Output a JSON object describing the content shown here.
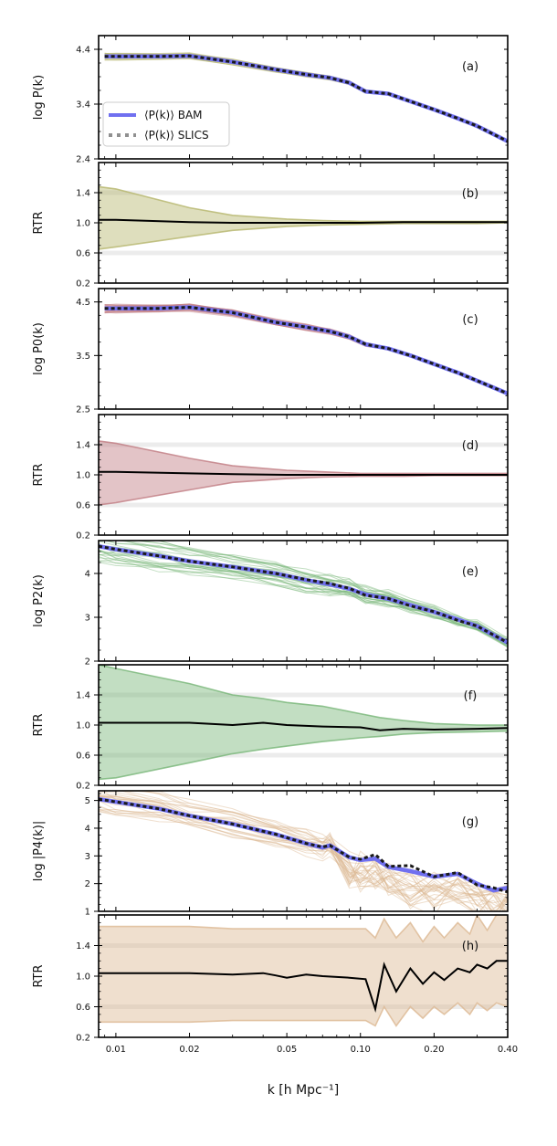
{
  "colors": {
    "bam": "#7070f0",
    "slics": "#1a1a1a",
    "legend_slics": "#909090",
    "olive": "#b5b56c",
    "rose": "#c07c82",
    "green": "#77b577",
    "tan": "#dcb892",
    "ratio": "#000000",
    "grid": "#ececec"
  },
  "x_axis": {
    "label": "k [h Mpc⁻¹]",
    "scale": "log",
    "lim": [
      0.0085,
      0.4
    ],
    "ticks": [
      0.01,
      0.02,
      0.05,
      0.1,
      0.2,
      0.4
    ],
    "tick_labels": [
      "0.01",
      "0.02",
      "0.05",
      "0.10",
      "0.20",
      "0.40"
    ]
  },
  "legend": {
    "placement": "lower-left of panel (a)",
    "entries": [
      "⟨P(k)⟩ BAM",
      "⟨P(k)⟩ SLICS"
    ]
  },
  "chart_data": [
    {
      "panel": "(a)",
      "type": "line",
      "ylabel": "log P(k)",
      "ylim": [
        2.4,
        4.65
      ],
      "yticks": [
        2.4,
        3.4,
        4.4
      ],
      "ytick_labels": [
        "2.4",
        "3.4",
        "4.4"
      ],
      "band_color": "olive",
      "x": [
        0.009,
        0.01,
        0.015,
        0.02,
        0.03,
        0.045,
        0.06,
        0.075,
        0.09,
        0.105,
        0.13,
        0.16,
        0.2,
        0.25,
        0.3,
        0.4
      ],
      "series": [
        {
          "name": "⟨P(k)⟩ BAM",
          "values": [
            4.27,
            4.27,
            4.27,
            4.28,
            4.17,
            4.03,
            3.94,
            3.88,
            3.79,
            3.63,
            3.59,
            3.45,
            3.3,
            3.14,
            3.0,
            2.72
          ]
        },
        {
          "name": "⟨P(k)⟩ SLICS",
          "values": [
            4.27,
            4.27,
            4.27,
            4.28,
            4.17,
            4.03,
            3.94,
            3.88,
            3.79,
            3.63,
            3.59,
            3.45,
            3.3,
            3.14,
            3.0,
            2.72
          ]
        }
      ]
    },
    {
      "panel": "(b)",
      "type": "area",
      "ylabel": "RTR",
      "ylim": [
        0.2,
        1.8
      ],
      "yticks": [
        0.2,
        0.6,
        1.0,
        1.4
      ],
      "ytick_labels": [
        "0.2",
        "0.6",
        "1.0",
        "1.4"
      ],
      "band_color": "olive",
      "x": [
        0.0085,
        0.01,
        0.02,
        0.03,
        0.05,
        0.07,
        0.1,
        0.15,
        0.2,
        0.3,
        0.4
      ],
      "ratio": [
        1.04,
        1.04,
        1.01,
        1.0,
        1.0,
        1.0,
        1.0,
        1.01,
        1.01,
        1.01,
        1.01
      ],
      "upper": [
        1.48,
        1.45,
        1.2,
        1.1,
        1.05,
        1.03,
        1.02,
        1.02,
        1.02,
        1.02,
        1.02
      ],
      "lower": [
        0.65,
        0.68,
        0.82,
        0.9,
        0.95,
        0.97,
        0.98,
        0.99,
        0.99,
        0.99,
        1.0
      ]
    },
    {
      "panel": "(c)",
      "type": "line",
      "ylabel": "log P0(k)",
      "ylim": [
        2.5,
        4.75
      ],
      "yticks": [
        2.5,
        3.5,
        4.5
      ],
      "ytick_labels": [
        "2.5",
        "3.5",
        "4.5"
      ],
      "band_color": "rose",
      "x": [
        0.009,
        0.01,
        0.015,
        0.02,
        0.03,
        0.045,
        0.06,
        0.075,
        0.09,
        0.105,
        0.13,
        0.16,
        0.2,
        0.25,
        0.3,
        0.4
      ],
      "series": [
        {
          "name": "⟨P(k)⟩ BAM",
          "values": [
            4.38,
            4.38,
            4.38,
            4.4,
            4.3,
            4.12,
            4.03,
            3.95,
            3.85,
            3.71,
            3.63,
            3.5,
            3.34,
            3.18,
            3.03,
            2.79
          ]
        },
        {
          "name": "⟨P(k)⟩ SLICS",
          "values": [
            4.38,
            4.38,
            4.38,
            4.4,
            4.3,
            4.12,
            4.03,
            3.95,
            3.85,
            3.71,
            3.63,
            3.5,
            3.34,
            3.18,
            3.03,
            2.79
          ]
        }
      ]
    },
    {
      "panel": "(d)",
      "type": "area",
      "ylabel": "RTR",
      "ylim": [
        0.2,
        1.8
      ],
      "yticks": [
        0.2,
        0.6,
        1.0,
        1.4
      ],
      "ytick_labels": [
        "0.2",
        "0.6",
        "1.0",
        "1.4"
      ],
      "band_color": "rose",
      "x": [
        0.0085,
        0.01,
        0.02,
        0.03,
        0.05,
        0.07,
        0.1,
        0.15,
        0.2,
        0.3,
        0.4
      ],
      "ratio": [
        1.04,
        1.04,
        1.02,
        1.01,
        1.0,
        1.0,
        1.0,
        1.0,
        1.0,
        1.0,
        1.0
      ],
      "upper": [
        1.45,
        1.42,
        1.22,
        1.12,
        1.06,
        1.04,
        1.02,
        1.02,
        1.02,
        1.02,
        1.02
      ],
      "lower": [
        0.6,
        0.63,
        0.8,
        0.9,
        0.95,
        0.97,
        0.98,
        0.98,
        0.99,
        0.99,
        0.99
      ]
    },
    {
      "panel": "(e)",
      "type": "line",
      "ylabel": "log P2(k)",
      "ylim": [
        2,
        4.75
      ],
      "yticks": [
        2,
        3,
        4
      ],
      "ytick_labels": [
        "2",
        "3",
        "4"
      ],
      "band_color": "green",
      "x": [
        0.0085,
        0.01,
        0.015,
        0.02,
        0.03,
        0.045,
        0.06,
        0.075,
        0.09,
        0.105,
        0.13,
        0.16,
        0.2,
        0.25,
        0.3,
        0.4
      ],
      "series": [
        {
          "name": "⟨P(k)⟩ BAM",
          "values": [
            4.62,
            4.55,
            4.4,
            4.28,
            4.15,
            4.0,
            3.85,
            3.75,
            3.65,
            3.52,
            3.42,
            3.28,
            3.12,
            2.95,
            2.8,
            2.42
          ]
        },
        {
          "name": "⟨P(k)⟩ SLICS",
          "values": [
            4.62,
            4.55,
            4.4,
            4.28,
            4.15,
            4.0,
            3.86,
            3.77,
            3.66,
            3.5,
            3.43,
            3.26,
            3.13,
            2.93,
            2.8,
            2.42
          ]
        }
      ]
    },
    {
      "panel": "(f)",
      "type": "area",
      "ylabel": "RTR",
      "ylim": [
        0.2,
        1.8
      ],
      "yticks": [
        0.2,
        0.6,
        1.0,
        1.4
      ],
      "ytick_labels": [
        "0.2",
        "0.6",
        "1.0",
        "1.4"
      ],
      "band_color": "green",
      "x": [
        0.0085,
        0.01,
        0.02,
        0.03,
        0.04,
        0.05,
        0.07,
        0.1,
        0.12,
        0.15,
        0.2,
        0.3,
        0.4
      ],
      "ratio": [
        1.03,
        1.03,
        1.03,
        1.0,
        1.03,
        1.0,
        0.98,
        0.97,
        0.93,
        0.95,
        0.94,
        0.95,
        0.96
      ],
      "upper": [
        1.8,
        1.75,
        1.55,
        1.4,
        1.35,
        1.3,
        1.25,
        1.15,
        1.1,
        1.06,
        1.02,
        1.0,
        1.0
      ],
      "lower": [
        0.28,
        0.3,
        0.5,
        0.62,
        0.68,
        0.72,
        0.78,
        0.83,
        0.85,
        0.88,
        0.9,
        0.91,
        0.92
      ]
    },
    {
      "panel": "(g)",
      "type": "line",
      "ylabel": "log |P4(k)|",
      "ylim": [
        1,
        5.35
      ],
      "yticks": [
        1,
        2,
        3,
        4,
        5
      ],
      "ytick_labels": [
        "1",
        "2",
        "3",
        "4",
        "5"
      ],
      "band_color": "tan",
      "x": [
        0.0085,
        0.01,
        0.015,
        0.02,
        0.03,
        0.045,
        0.06,
        0.07,
        0.075,
        0.09,
        0.1,
        0.115,
        0.13,
        0.16,
        0.2,
        0.25,
        0.3,
        0.35,
        0.4
      ],
      "series": [
        {
          "name": "⟨P(k)⟩ BAM",
          "values": [
            5.05,
            4.95,
            4.7,
            4.45,
            4.15,
            3.78,
            3.45,
            3.3,
            3.38,
            2.95,
            2.85,
            2.9,
            2.6,
            2.45,
            2.25,
            2.35,
            2.0,
            1.75,
            1.85
          ]
        },
        {
          "name": "⟨P(k)⟩ SLICS",
          "values": [
            5.05,
            4.95,
            4.7,
            4.45,
            4.15,
            3.78,
            3.45,
            3.32,
            3.38,
            2.95,
            2.88,
            3.05,
            2.62,
            2.65,
            2.25,
            2.4,
            1.95,
            1.85,
            1.7
          ]
        }
      ]
    },
    {
      "panel": "(h)",
      "type": "area",
      "ylabel": "RTR",
      "ylim": [
        0.2,
        1.8
      ],
      "yticks": [
        0.2,
        0.6,
        1.0,
        1.4
      ],
      "ytick_labels": [
        "0.2",
        "0.6",
        "1.0",
        "1.4"
      ],
      "band_color": "tan",
      "x": [
        0.0085,
        0.01,
        0.02,
        0.03,
        0.04,
        0.045,
        0.05,
        0.06,
        0.07,
        0.09,
        0.105,
        0.115,
        0.125,
        0.14,
        0.16,
        0.18,
        0.2,
        0.22,
        0.25,
        0.28,
        0.3,
        0.33,
        0.36,
        0.4
      ],
      "ratio": [
        1.04,
        1.04,
        1.04,
        1.02,
        1.04,
        1.01,
        0.98,
        1.02,
        1.0,
        0.98,
        0.96,
        0.57,
        1.15,
        0.8,
        1.1,
        0.9,
        1.05,
        0.95,
        1.1,
        1.05,
        1.15,
        1.1,
        1.2,
        1.2
      ],
      "upper": [
        1.65,
        1.65,
        1.65,
        1.62,
        1.62,
        1.62,
        1.62,
        1.62,
        1.62,
        1.62,
        1.62,
        1.5,
        1.75,
        1.5,
        1.7,
        1.45,
        1.65,
        1.5,
        1.7,
        1.55,
        1.8,
        1.6,
        1.8,
        1.8
      ],
      "lower": [
        0.4,
        0.4,
        0.4,
        0.42,
        0.42,
        0.42,
        0.42,
        0.42,
        0.42,
        0.42,
        0.42,
        0.35,
        0.6,
        0.35,
        0.6,
        0.45,
        0.6,
        0.5,
        0.65,
        0.5,
        0.65,
        0.55,
        0.65,
        0.6
      ]
    }
  ]
}
